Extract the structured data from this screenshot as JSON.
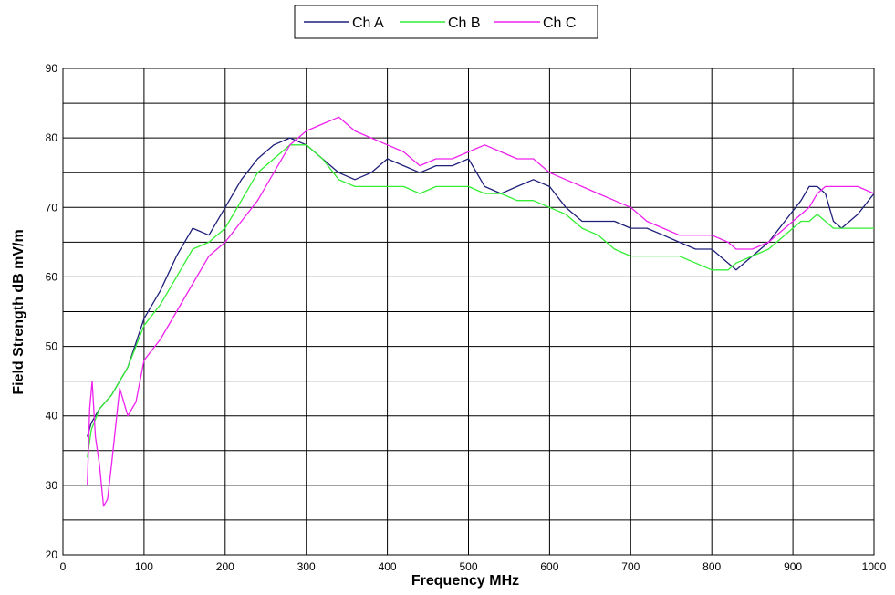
{
  "chart_data": {
    "type": "line",
    "title": "",
    "xlabel": "Frequency MHz",
    "ylabel": "Field Strength dB mV/m",
    "xlim": [
      0,
      1000
    ],
    "ylim": [
      20,
      90
    ],
    "x_ticks": [
      "0",
      "100",
      "200",
      "300",
      "400",
      "500",
      "600",
      "700",
      "800",
      "900",
      "1000"
    ],
    "y_ticks": [
      "20",
      "30",
      "40",
      "50",
      "60",
      "70",
      "80",
      "90"
    ],
    "grid": true,
    "legend_position": "top-center",
    "series": [
      {
        "name": "Ch A",
        "color": "#1f1f7a",
        "x": [
          30,
          35,
          45,
          60,
          80,
          100,
          120,
          140,
          160,
          180,
          200,
          220,
          240,
          260,
          280,
          300,
          320,
          340,
          360,
          380,
          400,
          420,
          440,
          460,
          480,
          500,
          520,
          540,
          560,
          580,
          600,
          620,
          640,
          660,
          680,
          700,
          720,
          740,
          760,
          780,
          800,
          820,
          830,
          850,
          870,
          890,
          910,
          920,
          930,
          940,
          950,
          960,
          980,
          1000
        ],
        "y": [
          37,
          39,
          41,
          43,
          47,
          54,
          58,
          63,
          67,
          66,
          70,
          74,
          77,
          79,
          80,
          79,
          77,
          75,
          74,
          75,
          77,
          76,
          75,
          76,
          76,
          77,
          73,
          72,
          73,
          74,
          73,
          70,
          68,
          68,
          68,
          67,
          67,
          66,
          65,
          64,
          64,
          62,
          61,
          63,
          65,
          68,
          71,
          73,
          73,
          72,
          68,
          67,
          69,
          72
        ]
      },
      {
        "name": "Ch B",
        "color": "#33ee33",
        "x": [
          30,
          35,
          45,
          60,
          80,
          100,
          120,
          140,
          160,
          180,
          200,
          220,
          240,
          260,
          280,
          300,
          320,
          340,
          360,
          380,
          400,
          420,
          440,
          460,
          480,
          500,
          520,
          540,
          560,
          580,
          600,
          620,
          640,
          660,
          680,
          700,
          720,
          740,
          760,
          780,
          800,
          820,
          830,
          850,
          870,
          890,
          910,
          920,
          930,
          940,
          950,
          960,
          980,
          1000
        ],
        "y": [
          34,
          38,
          41,
          43,
          47,
          53,
          56,
          60,
          64,
          65,
          67,
          71,
          75,
          77,
          79,
          79,
          77,
          74,
          73,
          73,
          73,
          73,
          72,
          73,
          73,
          73,
          72,
          72,
          71,
          71,
          70,
          69,
          67,
          66,
          64,
          63,
          63,
          63,
          63,
          62,
          61,
          61,
          62,
          63,
          64,
          66,
          68,
          68,
          69,
          68,
          67,
          67,
          67,
          67
        ]
      },
      {
        "name": "Ch C",
        "color": "#ee22ee",
        "x": [
          30,
          33,
          36,
          40,
          45,
          50,
          55,
          60,
          70,
          80,
          90,
          100,
          120,
          140,
          160,
          180,
          200,
          220,
          240,
          260,
          280,
          300,
          320,
          340,
          360,
          380,
          400,
          420,
          440,
          460,
          480,
          500,
          520,
          540,
          560,
          580,
          600,
          620,
          640,
          660,
          680,
          700,
          720,
          740,
          760,
          780,
          800,
          820,
          830,
          850,
          870,
          890,
          910,
          920,
          930,
          940,
          950,
          960,
          980,
          1000
        ],
        "y": [
          30,
          41,
          45,
          37,
          33,
          27,
          28,
          33,
          44,
          40,
          42,
          48,
          51,
          55,
          59,
          63,
          65,
          68,
          71,
          75,
          79,
          81,
          82,
          83,
          81,
          80,
          79,
          78,
          76,
          77,
          77,
          78,
          79,
          78,
          77,
          77,
          75,
          74,
          73,
          72,
          71,
          70,
          68,
          67,
          66,
          66,
          66,
          65,
          64,
          64,
          65,
          67,
          69,
          70,
          72,
          73,
          73,
          73,
          73,
          72
        ]
      }
    ]
  }
}
